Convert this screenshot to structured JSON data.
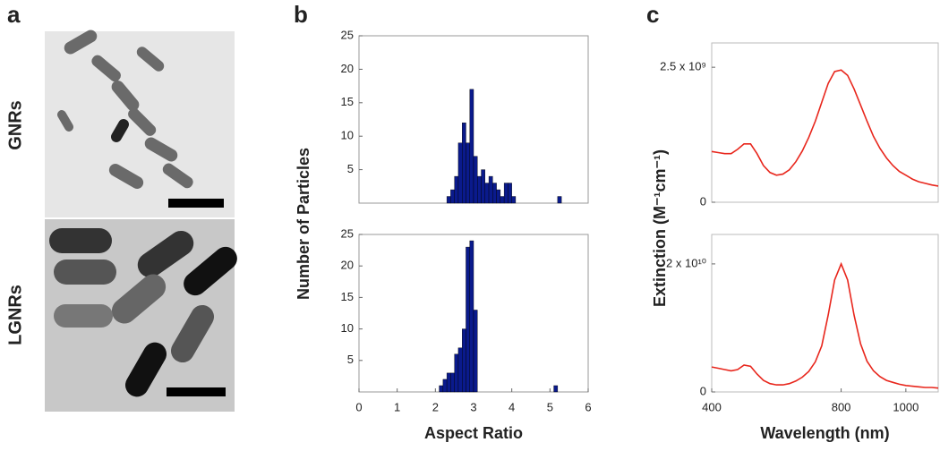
{
  "panel_labels": [
    "a",
    "b",
    "c"
  ],
  "image_labels": [
    "GNRs",
    "LGNRs"
  ],
  "chart_data": [
    {
      "type": "histogram",
      "ylabel": "Number of Particles",
      "color": "#0a1a8c",
      "bins": [
        2.3,
        2.4,
        2.5,
        2.6,
        2.7,
        2.8,
        2.9,
        3.0,
        3.1,
        3.2,
        3.3,
        3.4,
        3.5,
        3.6,
        3.7,
        3.8,
        3.9,
        4.0,
        4.1,
        4.2,
        4.3,
        4.4,
        4.5,
        4.6,
        4.7,
        4.8,
        4.9,
        5.0,
        5.1,
        5.2,
        5.3
      ],
      "values": [
        1,
        2,
        4,
        9,
        12,
        9,
        17,
        7,
        4,
        5,
        3,
        4,
        3,
        2,
        1,
        3,
        3,
        1,
        0,
        0,
        0,
        0,
        0,
        0,
        0,
        0,
        0,
        0,
        0,
        1
      ],
      "xlim": [
        0,
        6
      ],
      "ylim": [
        0,
        25
      ],
      "yticks": [
        5,
        10,
        15,
        20,
        25
      ]
    },
    {
      "type": "histogram",
      "xlabel": "Aspect Ratio",
      "color": "#0a1a8c",
      "bins": [
        2.1,
        2.2,
        2.3,
        2.4,
        2.5,
        2.6,
        2.7,
        2.8,
        2.9,
        3.0,
        3.1,
        3.2,
        3.3,
        3.4,
        3.5,
        3.6,
        3.7,
        3.8,
        3.9,
        4.0,
        4.1,
        4.2,
        4.3,
        4.4,
        4.5,
        4.6,
        4.7,
        4.8,
        4.9,
        5.0,
        5.1,
        5.2
      ],
      "values": [
        1,
        2,
        3,
        3,
        6,
        7,
        10,
        23,
        24,
        13,
        0,
        0,
        0,
        0,
        0,
        0,
        0,
        0,
        0,
        0,
        0,
        0,
        0,
        0,
        0,
        0,
        0,
        0,
        0,
        0,
        1
      ],
      "xlim": [
        0,
        6
      ],
      "ylim": [
        0,
        25
      ],
      "xticks": [
        0,
        1,
        2,
        3,
        4,
        5,
        6
      ],
      "yticks": [
        5,
        10,
        15,
        20,
        25
      ]
    },
    {
      "type": "line",
      "ylabel": "Extinction (M⁻¹cm⁻¹)",
      "color": "#e8261c",
      "x": [
        400,
        420,
        440,
        460,
        480,
        500,
        520,
        540,
        560,
        580,
        600,
        620,
        640,
        660,
        680,
        700,
        720,
        740,
        760,
        780,
        800,
        820,
        840,
        860,
        880,
        900,
        920,
        940,
        960,
        980,
        1000,
        1020,
        1040,
        1060,
        1080,
        1100
      ],
      "values": [
        940000000.0,
        920000000.0,
        900000000.0,
        900000000.0,
        980000000.0,
        1080000000.0,
        1080000000.0,
        900000000.0,
        680000000.0,
        550000000.0,
        500000000.0,
        520000000.0,
        600000000.0,
        750000000.0,
        950000000.0,
        1200000000.0,
        1500000000.0,
        1850000000.0,
        2200000000.0,
        2420000000.0,
        2450000000.0,
        2350000000.0,
        2100000000.0,
        1800000000.0,
        1500000000.0,
        1220000000.0,
        1000000000.0,
        820000000.0,
        680000000.0,
        570000000.0,
        500000000.0,
        430000000.0,
        380000000.0,
        350000000.0,
        320000000.0,
        300000000.0
      ],
      "xlim": [
        400,
        1100
      ],
      "ylim": [
        0,
        2950000000.0
      ],
      "yticks": [
        0,
        {
          "value": 2500000000.0,
          "label": "2.5 x 10⁹"
        }
      ]
    },
    {
      "type": "line",
      "xlabel": "Wavelength (nm)",
      "color": "#e8261c",
      "x": [
        400,
        420,
        440,
        460,
        480,
        500,
        520,
        540,
        560,
        580,
        600,
        620,
        640,
        660,
        680,
        700,
        720,
        740,
        760,
        780,
        800,
        820,
        840,
        860,
        880,
        900,
        920,
        940,
        960,
        980,
        1000,
        1020,
        1040,
        1060,
        1080,
        1100
      ],
      "values": [
        3900000000.0,
        3700000000.0,
        3500000000.0,
        3300000000.0,
        3500000000.0,
        4200000000.0,
        4000000000.0,
        2800000000.0,
        1800000000.0,
        1300000000.0,
        1100000000.0,
        1100000000.0,
        1300000000.0,
        1700000000.0,
        2300000000.0,
        3200000000.0,
        4700000000.0,
        7200000000.0,
        12000000000.0,
        17500000000.0,
        20000000000.0,
        17500000000.0,
        12000000000.0,
        7500000000.0,
        4800000000.0,
        3300000000.0,
        2400000000.0,
        1800000000.0,
        1500000000.0,
        1200000000.0,
        1000000000.0,
        900000000.0,
        800000000.0,
        700000000.0,
        700000000.0,
        600000000.0
      ],
      "xlim": [
        400,
        1100
      ],
      "ylim": [
        0,
        24600000000.0
      ],
      "xticks": [
        400,
        800,
        1000
      ],
      "yticks": [
        0,
        {
          "value": 20000000000.0,
          "label": "2 x 10¹⁰"
        }
      ]
    }
  ]
}
